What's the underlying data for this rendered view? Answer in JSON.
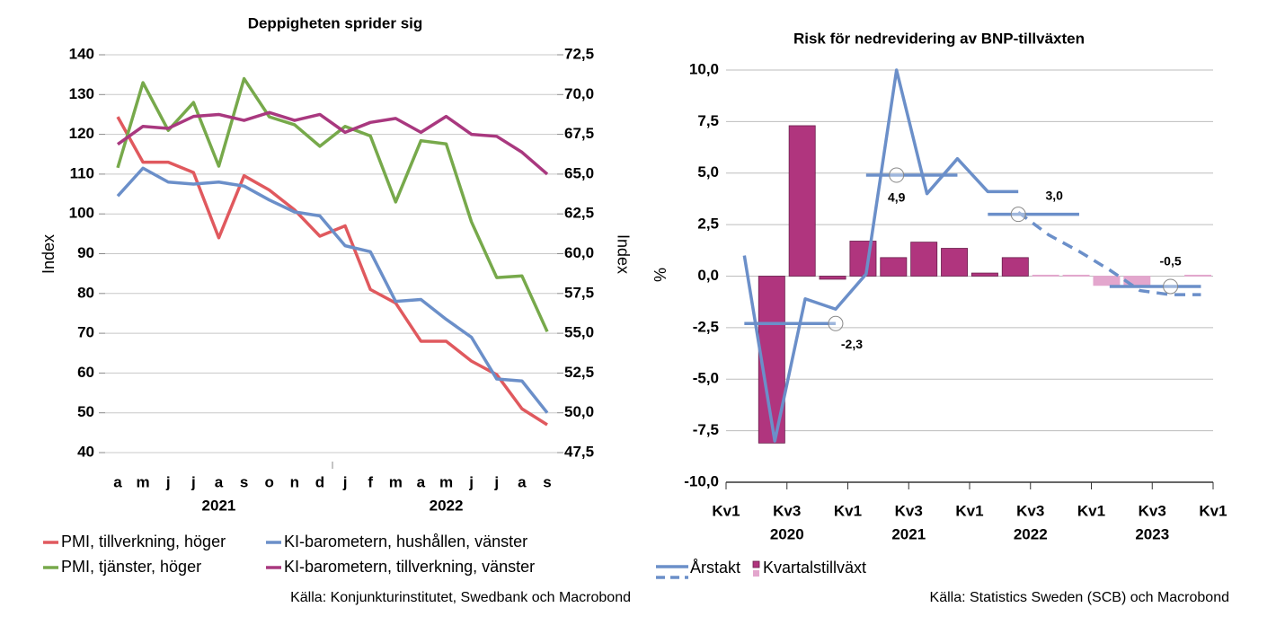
{
  "chart_data": [
    {
      "type": "line",
      "title": "Deppigheten sprider sig",
      "categories": [
        "a",
        "m",
        "j",
        "j",
        "a",
        "s",
        "o",
        "n",
        "d",
        "j",
        "f",
        "m",
        "a",
        "m",
        "j",
        "j",
        "a",
        "s"
      ],
      "year_labels": [
        "2021",
        "2022"
      ],
      "ylabel": "Index",
      "y2label": "Index",
      "ylim": [
        40,
        140
      ],
      "yticks": [
        40,
        50,
        60,
        70,
        80,
        90,
        100,
        110,
        120,
        130,
        140
      ],
      "y2lim": [
        47.5,
        72.5
      ],
      "y2ticks": [
        {
          "value": 47.5,
          "label": "47,5"
        },
        {
          "value": 50,
          "label": "50,0"
        },
        {
          "value": 52.5,
          "label": "52,5"
        },
        {
          "value": 55,
          "label": "55,0"
        },
        {
          "value": 57.5,
          "label": "57,5"
        },
        {
          "value": 60,
          "label": "60,0"
        },
        {
          "value": 62.5,
          "label": "62,5"
        },
        {
          "value": 65,
          "label": "65,0"
        },
        {
          "value": 67.5,
          "label": "67,5"
        },
        {
          "value": 70,
          "label": "70,0"
        },
        {
          "value": 72.5,
          "label": "72,5"
        }
      ],
      "grid": true,
      "series": [
        {
          "name": "PMI, tillverkning, höger",
          "color": "#e0595e",
          "axis": "y2",
          "values": [
            68.6,
            65.75,
            65.75,
            65.1,
            61.0,
            64.9,
            64.0,
            62.75,
            61.1,
            61.75,
            57.75,
            56.9,
            54.5,
            54.5,
            53.25,
            52.4,
            50.25,
            49.25
          ]
        },
        {
          "name": "KI-barometern, hushållen, vänster",
          "color": "#6b8fc9",
          "axis": "y",
          "values": [
            104.5,
            111.5,
            108,
            107.5,
            108,
            107,
            103.5,
            100.5,
            99.5,
            92,
            90.5,
            78,
            78.5,
            73.5,
            69,
            58.5,
            58,
            50
          ]
        },
        {
          "name": "PMI, tjänster, höger",
          "color": "#77a94b",
          "axis": "y2",
          "values": [
            65.4,
            70.75,
            67.75,
            69.5,
            65.5,
            71.0,
            68.6,
            68.1,
            66.75,
            68.0,
            67.4,
            63.25,
            67.1,
            66.9,
            62.0,
            58.5,
            58.6,
            55.1
          ]
        },
        {
          "name": "KI-barometern, tillverkning, vänster",
          "color": "#a9387f",
          "axis": "y",
          "values": [
            117.5,
            122,
            121.5,
            124.5,
            125,
            123.5,
            125.5,
            123.5,
            125,
            120.5,
            123,
            124,
            120.5,
            124.5,
            120,
            119.5,
            115.5,
            110
          ]
        }
      ],
      "source": "Källa: Konjunkturinstitutet, Swedbank och Macrobond"
    },
    {
      "type": "combo",
      "title": "Risk för nedrevidering av BNP-tillväxten",
      "ylabel": "%",
      "ylim": [
        -10,
        10
      ],
      "yticks": [
        {
          "value": -10,
          "label": "-10,0"
        },
        {
          "value": -7.5,
          "label": "-7,5"
        },
        {
          "value": -5,
          "label": "-5,0"
        },
        {
          "value": -2.5,
          "label": "-2,5"
        },
        {
          "value": 0,
          "label": "0,0"
        },
        {
          "value": 2.5,
          "label": "2,5"
        },
        {
          "value": 5,
          "label": "5,0"
        },
        {
          "value": 7.5,
          "label": "7,5"
        },
        {
          "value": 10,
          "label": "10,0"
        }
      ],
      "xlim": [
        0,
        16
      ],
      "xticks": [
        {
          "value": 0,
          "label": "Kv1"
        },
        {
          "value": 2,
          "label": "Kv3"
        },
        {
          "value": 4,
          "label": "Kv1"
        },
        {
          "value": 6,
          "label": "Kv3"
        },
        {
          "value": 8,
          "label": "Kv1"
        },
        {
          "value": 10,
          "label": "Kv3"
        },
        {
          "value": 12,
          "label": "Kv1"
        },
        {
          "value": 14,
          "label": "Kv3"
        },
        {
          "value": 16,
          "label": "Kv1"
        }
      ],
      "xgroups": [
        {
          "value": 2,
          "label": "2020"
        },
        {
          "value": 6,
          "label": "2021"
        },
        {
          "value": 10,
          "label": "2022"
        },
        {
          "value": 14,
          "label": "2023"
        }
      ],
      "grid": true,
      "bars": {
        "name": "Kvartalstillväxt",
        "x": [
          1.5,
          2.5,
          3.5,
          4.5,
          5.5,
          6.5,
          7.5,
          8.5,
          9.5,
          10.5,
          11.5,
          12.5,
          13.5,
          15.5
        ],
        "values": [
          -8.1,
          7.3,
          -0.15,
          1.7,
          0.9,
          1.65,
          1.35,
          0.15,
          0.9,
          0.05,
          0.05,
          -0.45,
          -0.45,
          0.05
        ],
        "colors": [
          "#b0357e",
          "#b0357e",
          "#b0357e",
          "#b0357e",
          "#b0357e",
          "#b0357e",
          "#b0357e",
          "#b0357e",
          "#b0357e",
          "#e3a6cd",
          "#e3a6cd",
          "#e3a6cd",
          "#e3a6cd",
          "#e3a6cd"
        ]
      },
      "line": {
        "name": "Årstakt",
        "color": "#6b8fc9",
        "x": [
          0.6,
          1.6,
          2.6,
          3.6,
          4.6,
          5.6,
          6.6,
          7.6,
          8.6,
          9.6
        ],
        "values": [
          1.0,
          -8.0,
          -1.1,
          -1.6,
          0.1,
          10.0,
          4.0,
          5.7,
          4.1,
          4.1
        ],
        "forecast_x": [
          9.6,
          10.6,
          11.6,
          12.6,
          13.6,
          14.6,
          15.6
        ],
        "forecast_values": [
          3.1,
          2.0,
          1.2,
          0.3,
          -0.7,
          -0.9,
          -0.9
        ]
      },
      "annual": [
        {
          "value": -2.3,
          "label": "-2,3",
          "x": [
            0.6,
            3.6
          ],
          "marker_x": 3.6
        },
        {
          "value": 4.9,
          "label": "4,9",
          "x": [
            4.6,
            7.6
          ],
          "marker_x": 5.6
        },
        {
          "value": 3.0,
          "label": "3,0",
          "x": [
            8.6,
            11.6
          ],
          "marker_x": 9.6
        },
        {
          "value": -0.5,
          "label": "-0,5",
          "x": [
            12.6,
            15.6
          ],
          "marker_x": 14.6
        }
      ],
      "source": "Källa: Statistics Sweden (SCB) och Macrobond"
    }
  ]
}
